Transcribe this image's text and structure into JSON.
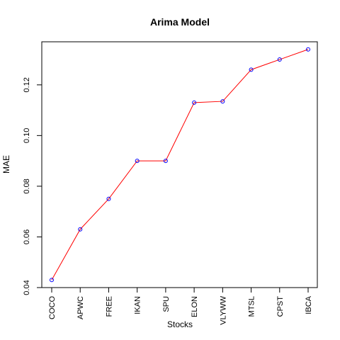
{
  "chart_data": {
    "type": "line",
    "title": "Arima Model",
    "xlabel": "Stocks",
    "ylabel": "MAE",
    "categories": [
      "COCO",
      "APWC",
      "FREE",
      "IKAN",
      "SPU",
      "ELON",
      "VLYWW",
      "MTSL",
      "CPST",
      "IBCA"
    ],
    "series": [
      {
        "values": [
          0.043,
          0.063,
          0.075,
          0.09,
          0.09,
          0.113,
          0.1135,
          0.126,
          0.13,
          0.134
        ]
      }
    ],
    "yticks": [
      "0.04",
      "0.06",
      "0.08",
      "0.10",
      "0.12"
    ],
    "ylim": [
      0.04,
      0.137
    ],
    "grid": false,
    "line_color": "#ff0000",
    "point_color": "#0000ff"
  }
}
